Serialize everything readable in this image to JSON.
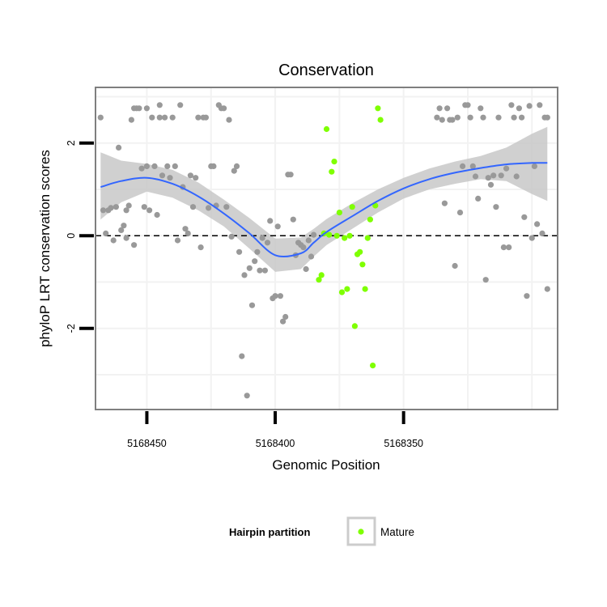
{
  "chart_data": {
    "type": "scatter",
    "title": "Conservation",
    "xlabel": "Genomic Position",
    "ylabel": "phyloP LRT conservation scores",
    "x_reversed": true,
    "xlim": [
      5168470,
      5168290
    ],
    "ylim": [
      -3.75,
      3.2
    ],
    "x_ticks": [
      5168450,
      5168400,
      5168350
    ],
    "x_tick_labels": [
      "5168450",
      "5168400",
      "5168350"
    ],
    "y_ticks": [
      -2,
      0,
      2
    ],
    "y_tick_labels": [
      "-2",
      "0",
      "2"
    ],
    "grid": true,
    "reference_line": {
      "y": 0,
      "style": "dashed"
    },
    "colors": {
      "other": "#999999",
      "mature": "#7fff00",
      "smooth": "#3366ff",
      "band": "#c8c8c8",
      "panel_border": "#7f7f7f",
      "grid": "#f2f2f2"
    },
    "legend": {
      "title": "Hairpin partition",
      "position": "bottom",
      "entries": [
        {
          "label": "Mature",
          "color": "#7fff00"
        }
      ]
    },
    "series": [
      {
        "name": "",
        "color": "#999999",
        "points": [
          [
            5168468,
            2.55
          ],
          [
            5168467,
            0.55
          ],
          [
            5168466,
            0.05
          ],
          [
            5168465,
            0.55
          ],
          [
            5168464,
            0.6
          ],
          [
            5168463,
            -0.1
          ],
          [
            5168462,
            0.62
          ],
          [
            5168461,
            1.9
          ],
          [
            5168460,
            0.12
          ],
          [
            5168459,
            0.22
          ],
          [
            5168458,
            0.55
          ],
          [
            5168458,
            -0.05
          ],
          [
            5168457,
            0.65
          ],
          [
            5168456,
            2.5
          ],
          [
            5168455,
            2.75
          ],
          [
            5168455,
            -0.2
          ],
          [
            5168454,
            2.75
          ],
          [
            5168453,
            2.75
          ],
          [
            5168452,
            1.45
          ],
          [
            5168451,
            0.62
          ],
          [
            5168450,
            2.75
          ],
          [
            5168450,
            1.5
          ],
          [
            5168449,
            0.55
          ],
          [
            5168448,
            2.55
          ],
          [
            5168447,
            1.5
          ],
          [
            5168446,
            0.45
          ],
          [
            5168445,
            2.55
          ],
          [
            5168445,
            2.82
          ],
          [
            5168444,
            1.3
          ],
          [
            5168443,
            2.55
          ],
          [
            5168442,
            1.5
          ],
          [
            5168441,
            1.25
          ],
          [
            5168440,
            2.55
          ],
          [
            5168439,
            1.5
          ],
          [
            5168438,
            -0.1
          ],
          [
            5168437,
            2.82
          ],
          [
            5168436,
            1.05
          ],
          [
            5168435,
            0.15
          ],
          [
            5168434,
            0.05
          ],
          [
            5168433,
            1.3
          ],
          [
            5168432,
            0.62
          ],
          [
            5168431,
            1.25
          ],
          [
            5168430,
            2.55
          ],
          [
            5168429,
            -0.25
          ],
          [
            5168428,
            2.55
          ],
          [
            5168427,
            2.55
          ],
          [
            5168426,
            0.6
          ],
          [
            5168425,
            1.5
          ],
          [
            5168424,
            1.5
          ],
          [
            5168423,
            0.65
          ],
          [
            5168422,
            2.82
          ],
          [
            5168421,
            2.75
          ],
          [
            5168420,
            2.75
          ],
          [
            5168419,
            0.62
          ],
          [
            5168418,
            2.5
          ],
          [
            5168417,
            -0.02
          ],
          [
            5168416,
            1.4
          ],
          [
            5168415,
            1.5
          ],
          [
            5168414,
            -0.35
          ],
          [
            5168413,
            -2.6
          ],
          [
            5168412,
            -0.85
          ],
          [
            5168411,
            -3.45
          ],
          [
            5168410,
            -0.7
          ],
          [
            5168409,
            -1.5
          ],
          [
            5168408,
            -0.55
          ],
          [
            5168407,
            -0.35
          ],
          [
            5168406,
            -0.75
          ],
          [
            5168405,
            -0.05
          ],
          [
            5168404,
            -0.75
          ],
          [
            5168403,
            -0.15
          ],
          [
            5168402,
            0.32
          ],
          [
            5168401,
            -1.35
          ],
          [
            5168400,
            -1.3
          ],
          [
            5168399,
            0.2
          ],
          [
            5168398,
            -1.3
          ],
          [
            5168397,
            -1.85
          ],
          [
            5168396,
            -1.75
          ],
          [
            5168395,
            1.32
          ],
          [
            5168394,
            1.32
          ],
          [
            5168393,
            0.35
          ],
          [
            5168392,
            -0.42
          ],
          [
            5168391,
            -0.15
          ],
          [
            5168390,
            -0.2
          ],
          [
            5168389,
            -0.25
          ],
          [
            5168388,
            -0.72
          ],
          [
            5168387,
            -0.1
          ],
          [
            5168386,
            -0.45
          ],
          [
            5168385,
            0.02
          ],
          [
            5168337,
            2.55
          ],
          [
            5168336,
            2.75
          ],
          [
            5168335,
            2.5
          ],
          [
            5168334,
            0.7
          ],
          [
            5168333,
            2.75
          ],
          [
            5168332,
            2.5
          ],
          [
            5168331,
            2.5
          ],
          [
            5168330,
            -0.65
          ],
          [
            5168329,
            2.55
          ],
          [
            5168328,
            0.5
          ],
          [
            5168327,
            1.5
          ],
          [
            5168326,
            2.82
          ],
          [
            5168325,
            2.82
          ],
          [
            5168324,
            2.55
          ],
          [
            5168323,
            1.5
          ],
          [
            5168322,
            1.28
          ],
          [
            5168321,
            0.8
          ],
          [
            5168320,
            2.75
          ],
          [
            5168319,
            2.55
          ],
          [
            5168318,
            -0.95
          ],
          [
            5168317,
            1.25
          ],
          [
            5168316,
            1.1
          ],
          [
            5168315,
            1.3
          ],
          [
            5168314,
            0.62
          ],
          [
            5168313,
            2.55
          ],
          [
            5168312,
            1.3
          ],
          [
            5168311,
            -0.25
          ],
          [
            5168310,
            1.45
          ],
          [
            5168309,
            -0.25
          ],
          [
            5168308,
            2.82
          ],
          [
            5168307,
            2.55
          ],
          [
            5168306,
            1.28
          ],
          [
            5168305,
            2.75
          ],
          [
            5168304,
            2.55
          ],
          [
            5168303,
            0.4
          ],
          [
            5168302,
            -1.3
          ],
          [
            5168301,
            2.8
          ],
          [
            5168300,
            -0.05
          ],
          [
            5168299,
            1.5
          ],
          [
            5168298,
            0.25
          ],
          [
            5168297,
            2.82
          ],
          [
            5168296,
            0.05
          ],
          [
            5168295,
            2.55
          ],
          [
            5168294,
            -1.15
          ],
          [
            5168294,
            2.55
          ]
        ]
      },
      {
        "name": "Mature",
        "color": "#7fff00",
        "points": [
          [
            5168383,
            -0.95
          ],
          [
            5168382,
            -0.85
          ],
          [
            5168381,
            0.05
          ],
          [
            5168380,
            2.3
          ],
          [
            5168379,
            0.02
          ],
          [
            5168378,
            1.38
          ],
          [
            5168377,
            1.6
          ],
          [
            5168376,
            0.0
          ],
          [
            5168375,
            0.5
          ],
          [
            5168374,
            -1.22
          ],
          [
            5168373,
            -0.05
          ],
          [
            5168372,
            -1.15
          ],
          [
            5168371,
            0.0
          ],
          [
            5168370,
            0.62
          ],
          [
            5168369,
            -1.95
          ],
          [
            5168368,
            -0.4
          ],
          [
            5168367,
            -0.35
          ],
          [
            5168366,
            -0.62
          ],
          [
            5168365,
            -1.15
          ],
          [
            5168364,
            -0.05
          ],
          [
            5168363,
            0.35
          ],
          [
            5168362,
            -2.8
          ],
          [
            5168361,
            0.65
          ],
          [
            5168360,
            2.75
          ],
          [
            5168359,
            2.5
          ]
        ]
      }
    ],
    "smooth": {
      "x": [
        5168468,
        5168460,
        5168450,
        5168440,
        5168430,
        5168420,
        5168410,
        5168400,
        5168390,
        5168385,
        5168380,
        5168370,
        5168360,
        5168350,
        5168340,
        5168330,
        5168320,
        5168310,
        5168300,
        5168294
      ],
      "y": [
        1.05,
        1.18,
        1.25,
        1.12,
        0.85,
        0.48,
        0.05,
        -0.42,
        -0.38,
        -0.15,
        0.08,
        0.42,
        0.75,
        1.02,
        1.22,
        1.36,
        1.46,
        1.54,
        1.57,
        1.57
      ],
      "lower": [
        0.35,
        0.72,
        0.95,
        0.82,
        0.55,
        0.2,
        -0.28,
        -0.78,
        -0.72,
        -0.45,
        -0.2,
        0.15,
        0.5,
        0.8,
        1.0,
        1.12,
        1.22,
        1.18,
        0.9,
        0.75
      ],
      "upper": [
        1.8,
        1.62,
        1.55,
        1.42,
        1.15,
        0.78,
        0.38,
        -0.06,
        -0.04,
        0.15,
        0.36,
        0.7,
        1.0,
        1.25,
        1.45,
        1.6,
        1.72,
        1.9,
        2.2,
        2.35
      ]
    }
  }
}
